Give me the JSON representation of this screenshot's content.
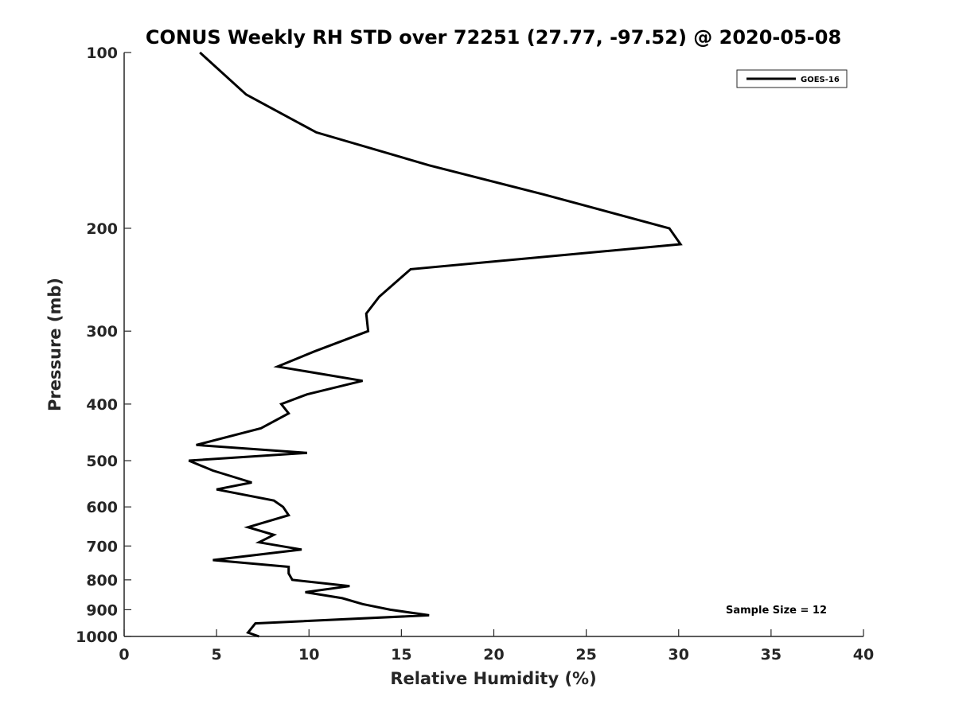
{
  "chart_data": {
    "type": "line",
    "title": "CONUS Weekly RH STD over 72251 (27.77, -97.52) @ 2020-05-08",
    "xlabel": "Relative Humidity (%)",
    "ylabel": "Pressure (mb)",
    "xlim": [
      0,
      40
    ],
    "ylim": [
      100,
      1000
    ],
    "yscale": "log",
    "y_reversed": true,
    "xticks": [
      0,
      5,
      10,
      15,
      20,
      25,
      30,
      35,
      40
    ],
    "yticks": [
      100,
      200,
      300,
      400,
      500,
      600,
      700,
      800,
      900,
      1000
    ],
    "grid": false,
    "legend": {
      "entries": [
        "GOES-16"
      ],
      "location": "top-right"
    },
    "annotation": "Sample Size = 12",
    "series": [
      {
        "name": "GOES-16",
        "color": "#000000",
        "x": [
          4.1,
          6.6,
          10.4,
          16.5,
          22.7,
          29.5,
          30.1,
          15.5,
          13.8,
          13.1,
          13.2,
          10.3,
          8.3,
          12.9,
          9.9,
          8.5,
          8.9,
          7.4,
          3.9,
          9.9,
          3.5,
          4.8,
          6.9,
          5.0,
          8.1,
          8.6,
          8.9,
          6.7,
          8.1,
          7.3,
          9.6,
          4.8,
          8.9,
          8.9,
          9.1,
          12.2,
          9.8,
          11.8,
          12.9,
          14.4,
          16.5,
          7.1,
          6.7,
          7.3
        ],
        "y": [
          100,
          118,
          137,
          156,
          175,
          200,
          213,
          235,
          262,
          280,
          300,
          325,
          345,
          365,
          385,
          400,
          415,
          440,
          470,
          485,
          500,
          520,
          545,
          560,
          585,
          600,
          620,
          650,
          670,
          690,
          710,
          740,
          760,
          780,
          800,
          820,
          840,
          860,
          880,
          900,
          920,
          950,
          985,
          1000
        ]
      }
    ]
  }
}
